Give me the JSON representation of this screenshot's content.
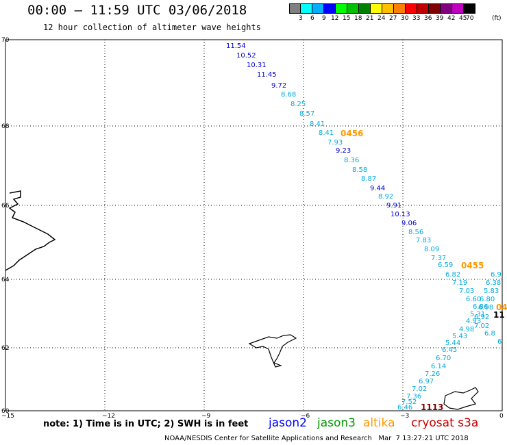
{
  "header": {
    "title": "00:00 – 11:59 UTC 03/06/2018",
    "subtitle": "12 hour collection of altimeter wave heights"
  },
  "color_scale": {
    "unit": "(ft)",
    "labels": [
      "3",
      "6",
      "9",
      "12",
      "15",
      "18",
      "21",
      "24",
      "27",
      "30",
      "33",
      "36",
      "39",
      "42",
      "45",
      "70"
    ],
    "colors": [
      "#808080",
      "#00ffff",
      "#00b0ff",
      "#0000ff",
      "#00ff00",
      "#00c000",
      "#008000",
      "#ffff00",
      "#ffc000",
      "#ff8000",
      "#ff0000",
      "#c00000",
      "#800000",
      "#800080",
      "#c000c0",
      "#000000"
    ]
  },
  "axes": {
    "x_ticks": [
      "−15",
      "−12",
      "−9",
      "−6",
      "−3",
      "0"
    ],
    "y_ticks": [
      "70",
      "68",
      "66",
      "64",
      "62",
      "60"
    ]
  },
  "passes": [
    {
      "label": "0456",
      "color": "#ff9900"
    },
    {
      "label": "0455",
      "color": "#ff9900"
    },
    {
      "label": "04",
      "color": "#ff9900"
    },
    {
      "label": "11",
      "color": "#000000"
    },
    {
      "label": "1113",
      "color": "#800000"
    }
  ],
  "track_main": {
    "values": [
      "11.54",
      "10.52",
      "10.31",
      "11.45",
      "9.72",
      "8.68",
      "8.25",
      "8.57",
      "8.41",
      "8.41",
      "7.93",
      "9.23",
      "8.36",
      "8.58",
      "8.87",
      "9.44",
      "8.92",
      "9.91",
      "10.13",
      "9.06",
      "8.56",
      "7.83",
      "8.09",
      "7.37",
      "6.59",
      "6.82",
      "7.19",
      "7.03",
      "6.60",
      "6.86",
      "5.31",
      "4.93",
      "4.98",
      "5.43",
      "5.44",
      "6.45",
      "6.70",
      "6.14",
      "7.26",
      "6.97",
      "7.02",
      "7.36",
      "7.52",
      "6.46"
    ],
    "colors": [
      "#0000cc",
      "#0000cc",
      "#0000cc",
      "#0000cc",
      "#0000cc",
      "#00aadd",
      "#00aadd",
      "#00aadd",
      "#00aadd",
      "#00aadd",
      "#00aadd",
      "#0000cc",
      "#00aadd",
      "#00aadd",
      "#00aadd",
      "#0000cc",
      "#00aadd",
      "#0000cc",
      "#0000cc",
      "#0000cc",
      "#00aadd",
      "#00aadd",
      "#00aadd",
      "#00aadd",
      "#00aadd",
      "#00aadd",
      "#00aadd",
      "#00aadd",
      "#00aadd",
      "#00aadd",
      "#00aadd",
      "#00aadd",
      "#00aadd",
      "#00aadd",
      "#00aadd",
      "#00aadd",
      "#00aadd",
      "#00aadd",
      "#00aadd",
      "#00aadd",
      "#00aadd",
      "#00aadd",
      "#00aadd",
      "#00aadd"
    ]
  },
  "track_right": {
    "values": [
      "6.9",
      "6.38",
      "5.83",
      "6.80",
      "6.98",
      "6.92",
      "7.02",
      "6.8",
      "6"
    ],
    "colors": [
      "#00aadd",
      "#00aadd",
      "#00aadd",
      "#00aadd",
      "#00aadd",
      "#00aadd",
      "#00aadd",
      "#00aadd",
      "#00aadd"
    ]
  },
  "note": "note: 1) Time is in UTC; 2) SWH is in feet",
  "satellites": [
    {
      "name": "jason2",
      "color": "#0000ff"
    },
    {
      "name": "jason3",
      "color": "#009900"
    },
    {
      "name": "altika",
      "color": "#ff9900"
    },
    {
      "name": "cryosat s3a",
      "color": "#cc0000"
    }
  ],
  "footer": "NOAA/NESDIS Center for Satellite Applications and Research   Mar  7 13:27:21 UTC 2018"
}
